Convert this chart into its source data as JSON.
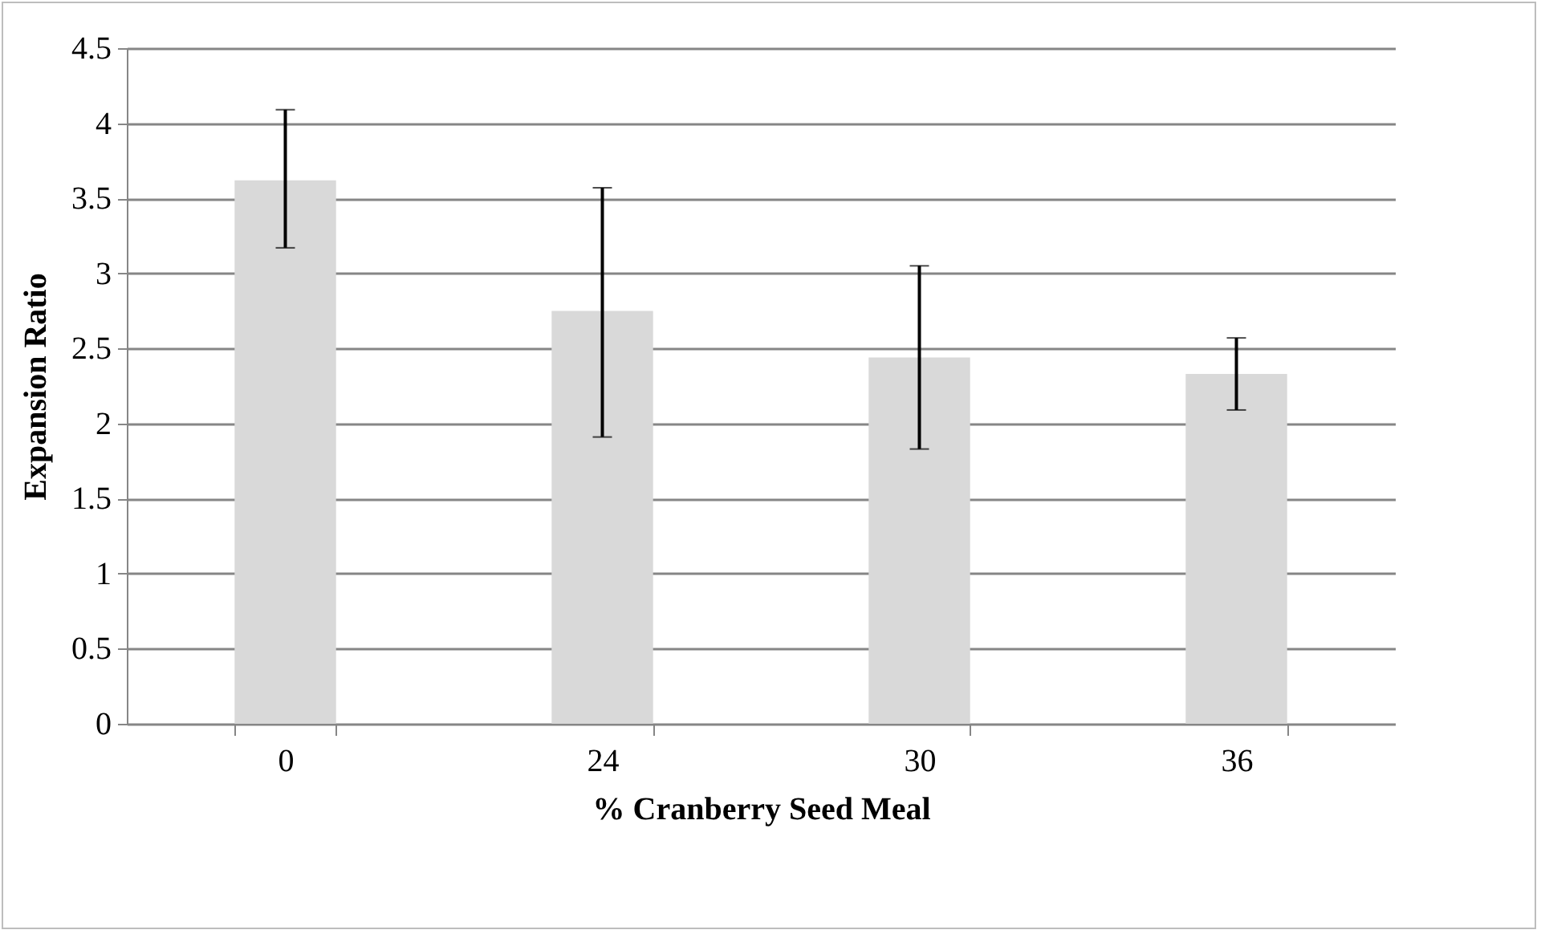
{
  "chart_data": {
    "type": "bar",
    "xlabel": "% Cranberry Seed Meal",
    "ylabel": "Expansion Ratio",
    "categories": [
      "0",
      "24",
      "30",
      "36"
    ],
    "values": [
      3.62,
      2.75,
      2.44,
      2.33
    ],
    "errors": [
      [
        3.17,
        4.09
      ],
      [
        1.91,
        3.57
      ],
      [
        1.83,
        3.05
      ],
      [
        2.09,
        2.57
      ]
    ],
    "color": "#d9d9d9",
    "ylim": [
      0,
      4.5
    ],
    "yticks": [
      0,
      0.5,
      1,
      1.5,
      2,
      2.5,
      3,
      3.5,
      4,
      4.5
    ],
    "grid": "y"
  }
}
